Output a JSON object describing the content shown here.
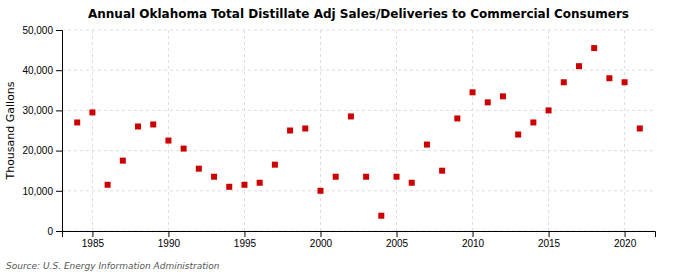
{
  "chart_data": {
    "type": "scatter",
    "title": "Annual Oklahoma Total Distillate Adj Sales/Deliveries to Commercial Consumers",
    "ylabel": "Thousand Gallons",
    "source": "Source: U.S. Energy Information Administration",
    "x": [
      1984,
      1985,
      1986,
      1987,
      1988,
      1989,
      1990,
      1991,
      1992,
      1993,
      1994,
      1995,
      1996,
      1997,
      1998,
      1999,
      2000,
      2001,
      2002,
      2003,
      2004,
      2005,
      2006,
      2007,
      2008,
      2009,
      2010,
      2011,
      2012,
      2013,
      2014,
      2015,
      2016,
      2017,
      2018,
      2019,
      2020,
      2021
    ],
    "values": [
      27000,
      29500,
      11500,
      17500,
      26000,
      26500,
      22500,
      20500,
      15500,
      13500,
      11000,
      11500,
      12000,
      16500,
      25000,
      25500,
      10000,
      13500,
      28500,
      13500,
      3800,
      13500,
      12000,
      21500,
      15000,
      28000,
      34500,
      32000,
      33500,
      24000,
      27000,
      30000,
      37000,
      41000,
      45500,
      38000,
      37000,
      25500
    ],
    "color": "#cc0000",
    "marker": "square",
    "xlim": [
      1983,
      2022
    ],
    "xticks": [
      1985,
      1990,
      1995,
      2000,
      2005,
      2010,
      2015,
      2020
    ],
    "ylim": [
      0,
      50000
    ],
    "yticks": [
      0,
      {
        "value": 10000,
        "label": "10,000"
      },
      {
        "value": 20000,
        "label": "20,000"
      },
      {
        "value": 30000,
        "label": "30,000"
      },
      {
        "value": 40000,
        "label": "40,000"
      },
      {
        "value": 50000,
        "label": "50,000"
      }
    ],
    "grid": true
  }
}
